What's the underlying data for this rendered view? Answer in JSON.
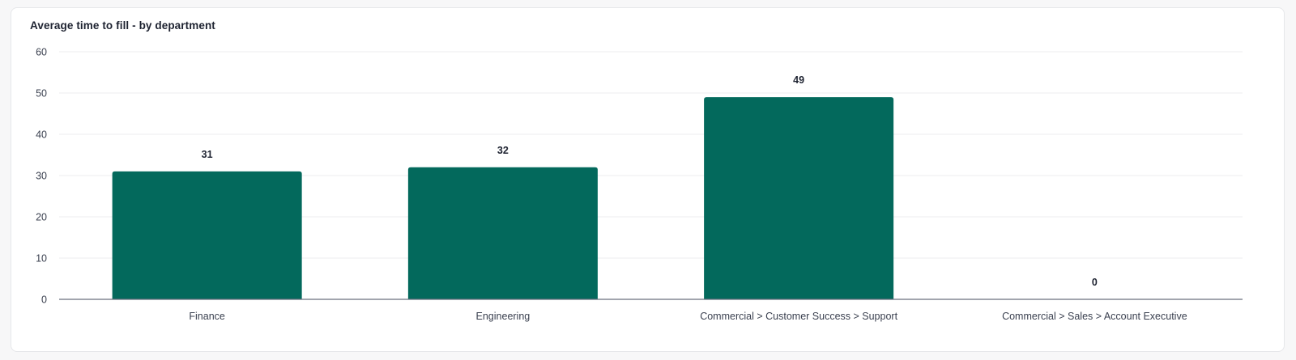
{
  "card": {
    "title": "Average time to fill - by department"
  },
  "colors": {
    "bar": "#03695c",
    "grid": "#ececef",
    "axis": "#6b6f7e"
  },
  "chart_data": {
    "type": "bar",
    "title": "Average time to fill - by department",
    "xlabel": "",
    "ylabel": "",
    "categories": [
      "Finance",
      "Engineering",
      "Commercial > Customer Success > Support",
      "Commercial > Sales > Account Executive"
    ],
    "values": [
      31,
      32,
      49,
      0
    ],
    "data_labels": [
      "31",
      "32",
      "49",
      "0"
    ],
    "ylim": [
      0,
      60
    ],
    "yticks": [
      0,
      10,
      20,
      30,
      40,
      50,
      60
    ],
    "grid": true,
    "legend": "none"
  }
}
